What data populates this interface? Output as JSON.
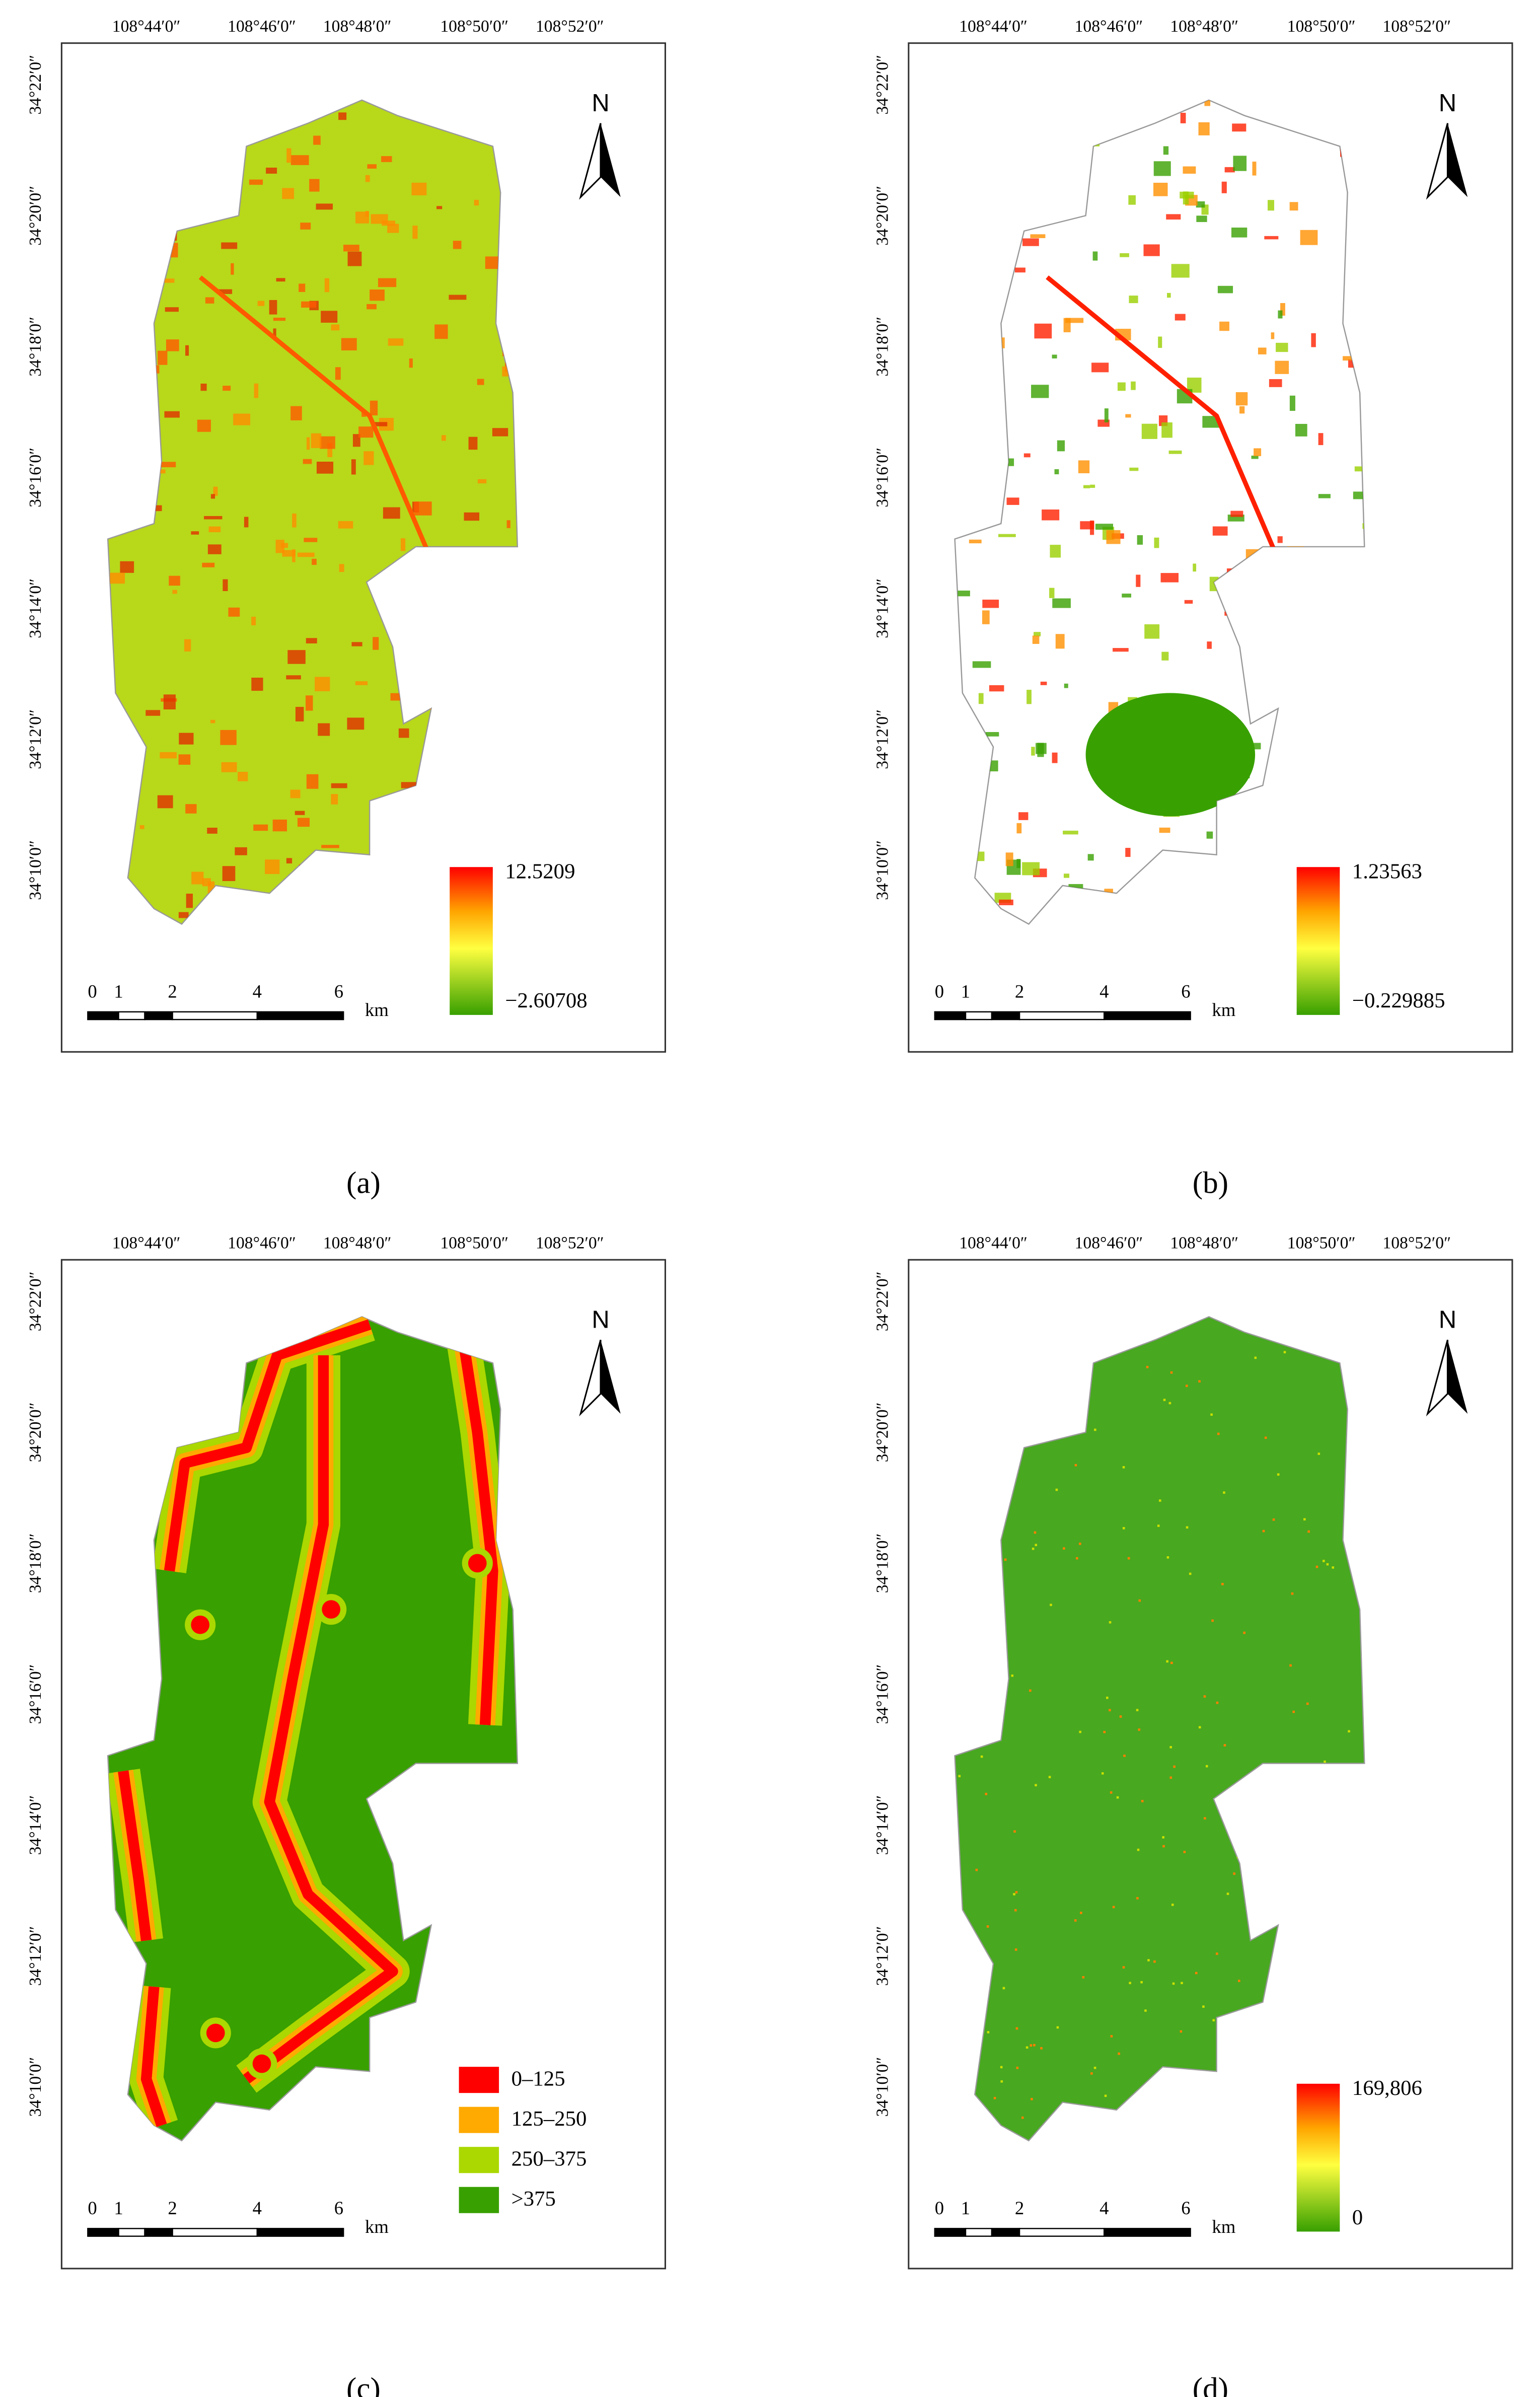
{
  "panels": [
    {
      "caption": "(a)",
      "lon_labels": [
        "108°44′0″",
        "108°46′0″",
        "108°48′0″",
        "108°50′0″",
        "108°52′0″"
      ],
      "lat_labels": [
        "34°22′0″",
        "34°20′0″",
        "34°18′0″",
        "34°16′0″",
        "34°14′0″",
        "34°12′0″",
        "34°10′0″"
      ],
      "north": "N",
      "scale_labels": [
        "0",
        "1",
        "2",
        "4",
        "6"
      ],
      "scale_unit": "km",
      "fill": "#b8d81a",
      "legend": {
        "type": "gradient",
        "max": "12.5209",
        "min": "−2.60708"
      }
    },
    {
      "caption": "(b)",
      "lon_labels": [
        "108°44′0″",
        "108°46′0″",
        "108°48′0″",
        "108°50′0″",
        "108°52′0″"
      ],
      "lat_labels": [
        "34°22′0″",
        "34°20′0″",
        "34°18′0″",
        "34°16′0″",
        "34°14′0″",
        "34°12′0″",
        "34°10′0″"
      ],
      "north": "N",
      "scale_labels": [
        "0",
        "1",
        "2",
        "4",
        "6"
      ],
      "scale_unit": "km",
      "fill": "#ffffff",
      "legend": {
        "type": "gradient",
        "max": "1.23563",
        "min": "−0.229885"
      }
    },
    {
      "caption": "(c)",
      "lon_labels": [
        "108°44′0″",
        "108°46′0″",
        "108°48′0″",
        "108°50′0″",
        "108°52′0″"
      ],
      "lat_labels": [
        "34°22′0″",
        "34°20′0″",
        "34°18′0″",
        "34°16′0″",
        "34°14′0″",
        "34°12′0″",
        "34°10′0″"
      ],
      "north": "N",
      "scale_labels": [
        "0",
        "1",
        "2",
        "4",
        "6"
      ],
      "scale_unit": "km",
      "fill": "#38a000",
      "legend": {
        "type": "classes",
        "items": [
          {
            "label": "0–125",
            "color": "#ff0000"
          },
          {
            "label": "125–250",
            "color": "#ffaa00"
          },
          {
            "label": "250–375",
            "color": "#aad800"
          },
          {
            "label": ">375",
            "color": "#38a000"
          }
        ]
      }
    },
    {
      "caption": "(d)",
      "lon_labels": [
        "108°44′0″",
        "108°46′0″",
        "108°48′0″",
        "108°50′0″",
        "108°52′0″"
      ],
      "lat_labels": [
        "34°22′0″",
        "34°20′0″",
        "34°18′0″",
        "34°16′0″",
        "34°14′0″",
        "34°12′0″",
        "34°10′0″"
      ],
      "north": "N",
      "scale_labels": [
        "0",
        "1",
        "2",
        "4",
        "6"
      ],
      "scale_unit": "km",
      "fill": "#48a820",
      "legend": {
        "type": "gradient",
        "max": "169,806",
        "min": "0"
      }
    }
  ]
}
